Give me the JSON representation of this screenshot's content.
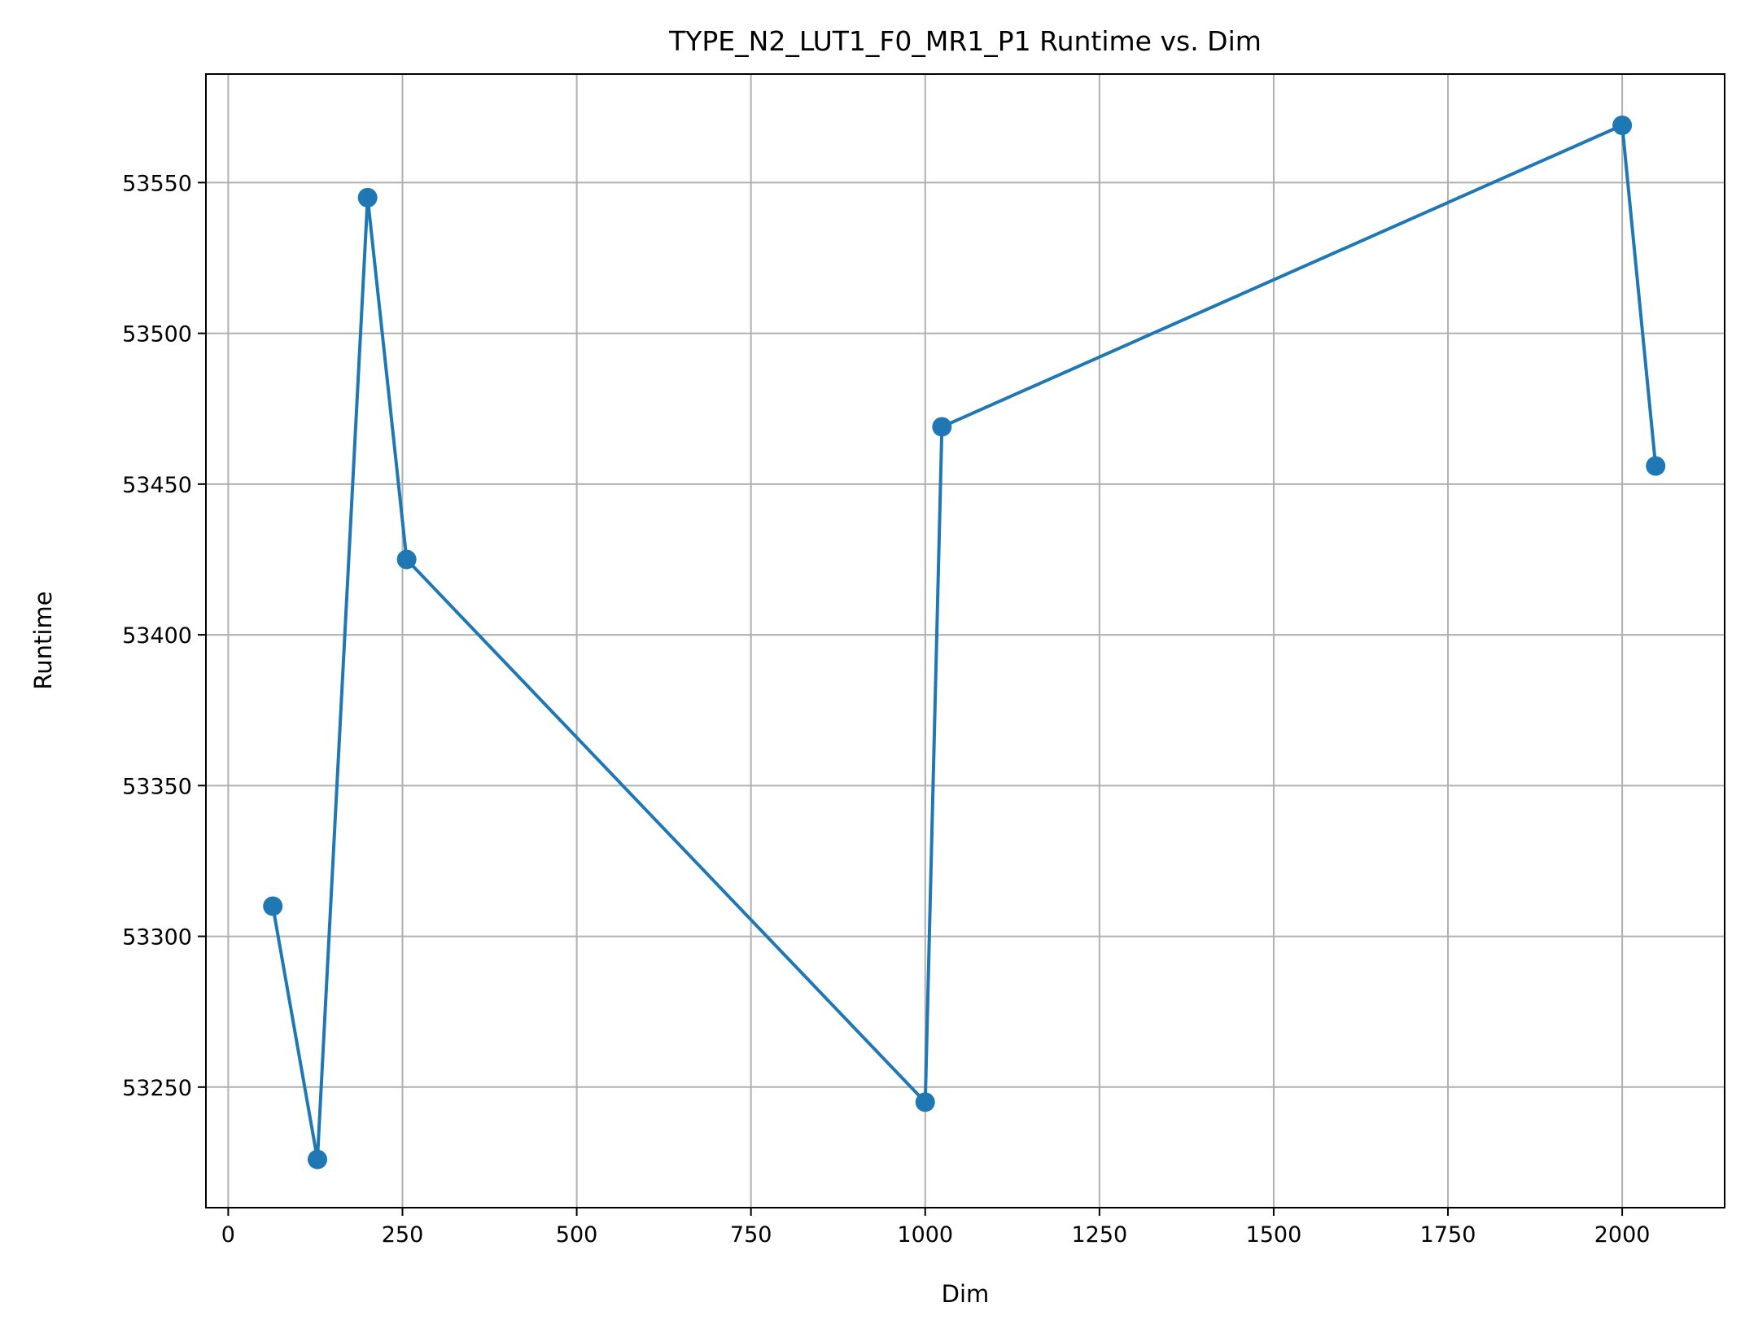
{
  "chart_data": {
    "type": "line",
    "title": "TYPE_N2_LUT1_F0_MR1_P1 Runtime vs. Dim",
    "xlabel": "Dim",
    "ylabel": "Runtime",
    "xlim": [
      -32,
      2147
    ],
    "ylim": [
      53210,
      53586
    ],
    "xticks": [
      0,
      250,
      500,
      750,
      1000,
      1250,
      1500,
      1750,
      2000
    ],
    "yticks": [
      53250,
      53300,
      53350,
      53400,
      53450,
      53500,
      53550
    ],
    "grid": true,
    "legend": "none",
    "series": [
      {
        "color": "#1f77b4",
        "marker": "circle",
        "x": [
          64,
          128,
          200,
          256,
          1000,
          1024,
          2000,
          2048
        ],
        "y": [
          53310,
          53226,
          53545,
          53425,
          53245,
          53469,
          53569,
          53456
        ]
      }
    ]
  }
}
